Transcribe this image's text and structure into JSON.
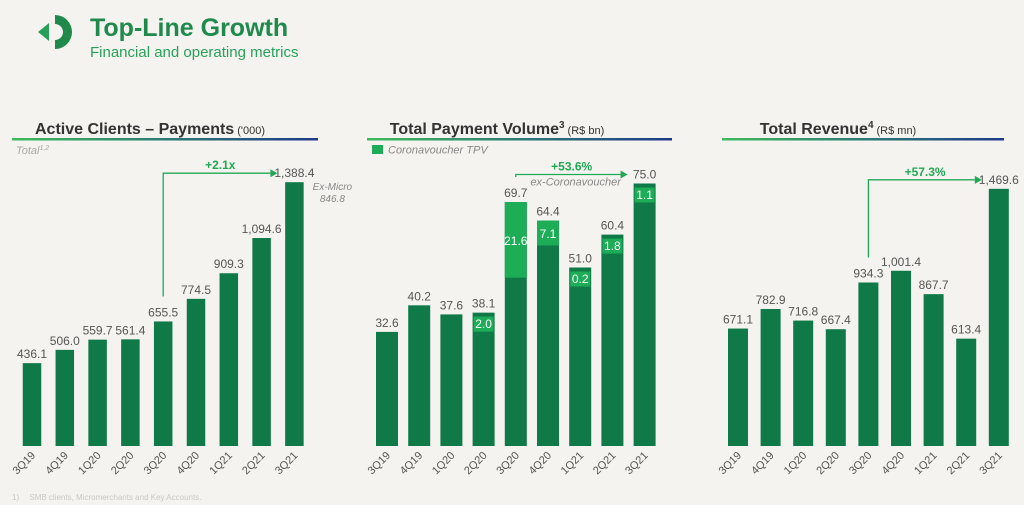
{
  "header": {
    "title": "Top-Line Growth",
    "subtitle": "Financial and operating metrics"
  },
  "colors": {
    "bar": "#0f7a48",
    "bar_highlight": "#1cad56",
    "accent_green": "#21a855",
    "line_navy": "#1d3a8a",
    "text_gray": "#555555"
  },
  "chart_data": [
    {
      "type": "bar",
      "title": "Active Clients – Payments",
      "unit": "('000)",
      "series_label": "Total",
      "series_label_sup": "1,2",
      "categories": [
        "3Q19",
        "4Q19",
        "1Q20",
        "2Q20",
        "3Q20",
        "4Q20",
        "1Q21",
        "2Q21",
        "3Q21"
      ],
      "values": [
        436.1,
        506.0,
        559.7,
        561.4,
        655.5,
        774.5,
        909.3,
        1094.6,
        1388.4
      ],
      "labels": [
        "436.1",
        "506.0",
        "559.7",
        "561.4",
        "655.5",
        "774.5",
        "909.3",
        "1,094.6",
        "1,388.4"
      ],
      "growth": "+2.1x",
      "side_note": [
        "Ex-Micro",
        "846.8"
      ]
    },
    {
      "type": "bar",
      "title": "Total Payment Volume",
      "title_sup": "3",
      "unit": "(R$ bn)",
      "legend": "Coronavoucher TPV",
      "categories": [
        "3Q19",
        "4Q19",
        "1Q20",
        "2Q20",
        "3Q20",
        "4Q20",
        "1Q21",
        "2Q21",
        "3Q21"
      ],
      "values": [
        32.6,
        40.2,
        37.6,
        38.1,
        69.7,
        64.4,
        51.0,
        60.4,
        75.0
      ],
      "labels": [
        "32.6",
        "40.2",
        "37.6",
        "38.1",
        "69.7",
        "64.4",
        "51.0",
        "60.4",
        "75.0"
      ],
      "coronavoucher": [
        0,
        0,
        0,
        2.0,
        21.6,
        7.1,
        0.2,
        1.8,
        1.1
      ],
      "coronavoucher_labels": [
        "",
        "",
        "",
        "2.0",
        "21.6",
        "7.1",
        "0.2",
        "1.8",
        "1.1"
      ],
      "growth": "+53.6%",
      "growth_note": "ex-Coronavoucher"
    },
    {
      "type": "bar",
      "title": "Total Revenue",
      "title_sup": "4",
      "unit": "(R$ mn)",
      "categories": [
        "3Q19",
        "4Q19",
        "1Q20",
        "2Q20",
        "3Q20",
        "4Q20",
        "1Q21",
        "2Q21",
        "3Q21"
      ],
      "values": [
        671.1,
        782.9,
        716.8,
        667.4,
        934.3,
        1001.4,
        867.7,
        613.4,
        1469.6
      ],
      "labels": [
        "671.1",
        "782.9",
        "716.8",
        "667.4",
        "934.3",
        "1,001.4",
        "867.7",
        "613.4",
        "1,469.6"
      ],
      "growth": "+57.3%"
    }
  ],
  "footnotes": [
    "1)",
    "SMB clients, Micromerchants and Key Accounts."
  ]
}
